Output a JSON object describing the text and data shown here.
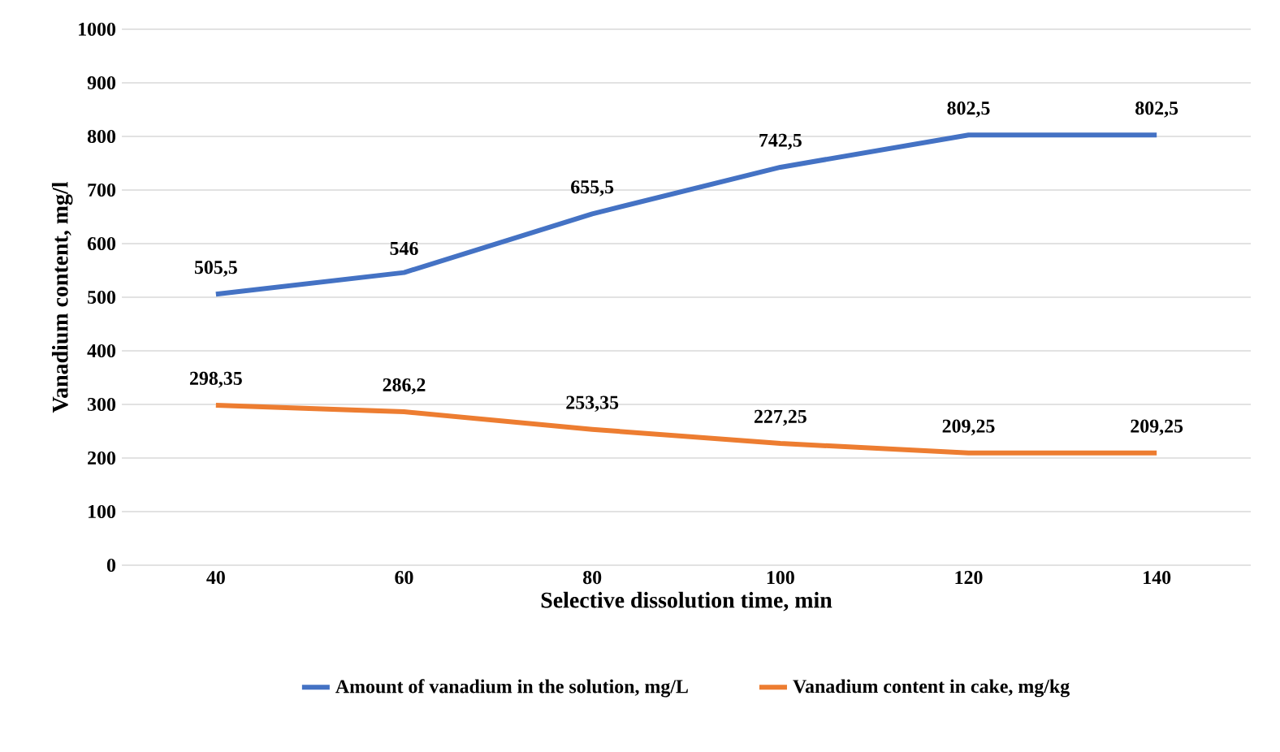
{
  "chart_data": {
    "type": "line",
    "xlabel": "Selective dissolution time, min",
    "ylabel": "Vanadium content, mg/l",
    "categories": [
      "40",
      "60",
      "80",
      "100",
      "120",
      "140"
    ],
    "series": [
      {
        "name": "Amount of vanadium in the solution, mg/L",
        "color": "#4472c4",
        "values": [
          505.5,
          546,
          655.5,
          742.5,
          802.5,
          802.5
        ],
        "value_labels": [
          "505,5",
          "546",
          "655,5",
          "742,5",
          "802,5",
          "802,5"
        ]
      },
      {
        "name": "Vanadium content in cake, mg/kg",
        "color": "#ed7d31",
        "values": [
          298.35,
          286.2,
          253.35,
          227.25,
          209.25,
          209.25
        ],
        "value_labels": [
          "298,35",
          "286,2",
          "253,35",
          "227,25",
          "209,25",
          "209,25"
        ]
      }
    ],
    "ylim": [
      0,
      1000
    ],
    "yticks": [
      0,
      100,
      200,
      300,
      400,
      500,
      600,
      700,
      800,
      900,
      1000
    ],
    "grid": "y",
    "legend": "bottom"
  }
}
